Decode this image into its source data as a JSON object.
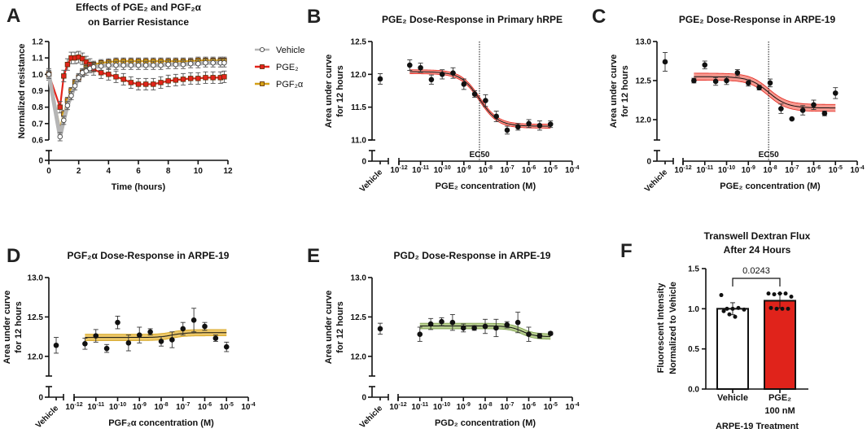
{
  "chart_data": [
    {
      "panel": "A",
      "type": "line",
      "title_lines": [
        "Effects of PGE₂ and PGF₂α",
        "on Barrier Resistance"
      ],
      "xlabel": "Time (hours)",
      "ylabel": "Normalized resistance",
      "xlim": [
        0,
        12
      ],
      "xticks": [
        0,
        2,
        4,
        6,
        8,
        10,
        12
      ],
      "xtick_labels": [
        "0",
        "2",
        "4",
        "6",
        "8",
        "10",
        "12"
      ],
      "ylim": [
        0.6,
        1.2
      ],
      "yticks": [
        0.6,
        0.7,
        0.8,
        0.9,
        1.0,
        1.1,
        1.2
      ],
      "ytick_labels": [
        "0.6",
        "0.7",
        "0.8",
        "0.9",
        "1.0",
        "1.1",
        "1.2"
      ],
      "y_break_label": "0",
      "legend": "right",
      "x": [
        0,
        0.75,
        1,
        1.25,
        1.5,
        1.75,
        2,
        2.25,
        2.5,
        2.75,
        3,
        3.5,
        4,
        4.5,
        5,
        5.5,
        6,
        6.5,
        7,
        7.5,
        8,
        8.5,
        9,
        9.5,
        10,
        10.5,
        11,
        11.5,
        11.75
      ],
      "series": [
        {
          "name": "PGF₂α",
          "color": "#d4a017",
          "marker": "square",
          "error": 0.02,
          "values": [
            1.0,
            0.67,
            0.76,
            0.84,
            0.9,
            0.95,
            0.98,
            1.01,
            1.04,
            1.05,
            1.06,
            1.07,
            1.075,
            1.08,
            1.08,
            1.08,
            1.08,
            1.08,
            1.08,
            1.08,
            1.08,
            1.08,
            1.08,
            1.08,
            1.085,
            1.085,
            1.085,
            1.085,
            1.085
          ]
        },
        {
          "name": "PGE₂",
          "color": "#e3241b",
          "marker": "square",
          "error": 0.035,
          "values": [
            1.0,
            0.8,
            0.99,
            1.06,
            1.1,
            1.1,
            1.105,
            1.095,
            1.075,
            1.06,
            1.03,
            1.01,
            1.0,
            0.985,
            0.97,
            0.95,
            0.94,
            0.94,
            0.94,
            0.95,
            0.96,
            0.965,
            0.97,
            0.975,
            0.975,
            0.98,
            0.98,
            0.98,
            0.985
          ]
        },
        {
          "name": "Vehicle",
          "color": "#b5b5b5",
          "marker": "circle",
          "error": 0.025,
          "values": [
            1.0,
            0.62,
            0.72,
            0.81,
            0.87,
            0.93,
            0.98,
            1.01,
            1.02,
            1.035,
            1.045,
            1.05,
            1.055,
            1.055,
            1.055,
            1.055,
            1.055,
            1.055,
            1.055,
            1.055,
            1.06,
            1.06,
            1.06,
            1.065,
            1.065,
            1.07,
            1.07,
            1.07,
            1.07
          ]
        }
      ]
    },
    {
      "panel": "B",
      "type": "scatter",
      "title": "PGE₂ Dose-Response in Primary hRPE",
      "xlabel": "PGE₂ concentration (M)",
      "ylabel_lines": [
        "Area under curve",
        "for 12 hours"
      ],
      "x_tick_base": "10",
      "x_tick_exponents": [
        "-12",
        "-11",
        "-10",
        "-9",
        "-8",
        "-7",
        "-6",
        "-5",
        "-4"
      ],
      "ylim": [
        11.0,
        12.5
      ],
      "yticks": [
        11.0,
        11.5,
        12.0,
        12.5
      ],
      "ytick_labels": [
        "11.0",
        "11.5",
        "12.0",
        "12.5"
      ],
      "y_break_label": "0",
      "x_log10": [
        -11.5,
        -11,
        -10.5,
        -10,
        -9.5,
        -9,
        -8.5,
        -8,
        -7.5,
        -7,
        -6.5,
        -6,
        -5.5,
        -5
      ],
      "values": [
        12.14,
        12.1,
        11.92,
        12.0,
        12.02,
        11.85,
        11.7,
        11.6,
        11.36,
        11.15,
        11.2,
        11.25,
        11.22,
        11.24
      ],
      "errors": [
        0.08,
        0.07,
        0.07,
        0.07,
        0.08,
        0.08,
        0.05,
        0.09,
        0.08,
        0.06,
        0.05,
        0.06,
        0.07,
        0.05
      ],
      "vehicle": {
        "label": "Vehicle",
        "value": 11.93,
        "error": 0.08
      },
      "fit": {
        "top": 12.04,
        "bottom": 11.21,
        "logEC50": -8.28,
        "hill": 1.0,
        "ci": 0.03
      },
      "ec50_label": "EC50",
      "colors": {
        "band": "#f4877c",
        "band_edge": "#e3241b",
        "line": "#111111"
      }
    },
    {
      "panel": "C",
      "type": "scatter",
      "title": "PGE₂ Dose-Response in ARPE-19",
      "xlabel": "PGE₂ concentration (M)",
      "ylabel_lines": [
        "Area under curve",
        "for 12 hours"
      ],
      "x_tick_base": "10",
      "x_tick_exponents": [
        "-12",
        "-11",
        "-10",
        "-9",
        "-8",
        "-7",
        "-6",
        "-5",
        "-4"
      ],
      "ylim": [
        11.74,
        13.0
      ],
      "yticks": [
        12.0,
        12.5,
        13.0
      ],
      "ytick_labels": [
        "12.0",
        "12.5",
        "13.0"
      ],
      "y_break_label": "0",
      "x_log10": [
        -11.5,
        -11,
        -10.5,
        -10,
        -9.5,
        -9,
        -8.5,
        -8,
        -7.5,
        -7,
        -6.5,
        -6,
        -5.5,
        -5
      ],
      "values": [
        12.5,
        12.7,
        12.49,
        12.5,
        12.6,
        12.47,
        12.41,
        12.47,
        12.14,
        12.01,
        12.12,
        12.19,
        12.08,
        12.34
      ],
      "errors": [
        0.03,
        0.05,
        0.05,
        0.05,
        0.04,
        0.04,
        0.03,
        0.05,
        0.06,
        0.0,
        0.06,
        0.06,
        0.03,
        0.07
      ],
      "vehicle": {
        "label": "Vehicle",
        "value": 12.74,
        "error": 0.12
      },
      "fit": {
        "top": 12.55,
        "bottom": 12.15,
        "logEC50": -8.07,
        "hill": 1.0,
        "ci": 0.045
      },
      "ec50_label": "EC50",
      "colors": {
        "band": "#f4877c",
        "band_edge": "#e3241b",
        "line": "#111111"
      }
    },
    {
      "panel": "D",
      "type": "scatter",
      "title": "PGF₂α Dose-Response in ARPE-19",
      "xlabel": "PGF₂α concentration (M)",
      "ylabel_lines": [
        "Area under curve",
        "for 12 hours"
      ],
      "x_tick_base": "10",
      "x_tick_exponents": [
        "-12",
        "-11",
        "-10",
        "-9",
        "-8",
        "-7",
        "-6",
        "-5",
        "-4"
      ],
      "ylim": [
        11.75,
        13.0
      ],
      "yticks": [
        12.0,
        12.5,
        13.0
      ],
      "ytick_labels": [
        "12.0",
        "12.5",
        "13.0"
      ],
      "y_break_label": "0",
      "x_log10": [
        -11.5,
        -11,
        -10.5,
        -10,
        -9.5,
        -9,
        -8.5,
        -8,
        -7.5,
        -7,
        -6.5,
        -6,
        -5.5,
        -5
      ],
      "values": [
        12.16,
        12.26,
        12.1,
        12.43,
        12.17,
        12.27,
        12.31,
        12.19,
        12.21,
        12.35,
        12.46,
        12.38,
        12.23,
        12.12
      ],
      "errors": [
        0.07,
        0.08,
        0.05,
        0.08,
        0.1,
        0.1,
        0.04,
        0.06,
        0.1,
        0.08,
        0.15,
        0.05,
        0.04,
        0.06
      ],
      "vehicle": {
        "label": "Vehicle",
        "value": 12.14,
        "error": 0.1
      },
      "fit": {
        "top": 12.24,
        "bottom": 12.3,
        "logEC50": -7.5,
        "hill": 1.5,
        "ci": 0.04
      },
      "colors": {
        "band": "#e9bd4c",
        "band_edge": "#d4a017",
        "line": "#111111"
      }
    },
    {
      "panel": "E",
      "type": "scatter",
      "title": "PGD₂ Dose-Response in ARPE-19",
      "xlabel": "PGD₂ concentration (M)",
      "ylabel_lines": [
        "Area under curve",
        "for 12 hours"
      ],
      "x_tick_base": "10",
      "x_tick_exponents": [
        "-12",
        "-11",
        "-10",
        "-9",
        "-8",
        "-7",
        "-6",
        "-5",
        "-4"
      ],
      "ylim": [
        11.75,
        13.0
      ],
      "yticks": [
        12.0,
        12.5,
        13.0
      ],
      "ytick_labels": [
        "12.0",
        "12.5",
        "13.0"
      ],
      "y_break_label": "0",
      "x_log10": [
        -11,
        -10.5,
        -10,
        -9.5,
        -9,
        -8.5,
        -8,
        -7.5,
        -7,
        -6.5,
        -6,
        -5.5,
        -5
      ],
      "values": [
        12.28,
        12.41,
        12.44,
        12.43,
        12.36,
        12.36,
        12.38,
        12.36,
        12.4,
        12.43,
        12.28,
        12.26,
        12.29
      ],
      "errors": [
        0.09,
        0.07,
        0.05,
        0.1,
        0.05,
        0.03,
        0.09,
        0.11,
        0.04,
        0.13,
        0.09,
        0.03,
        0.02
      ],
      "vehicle": {
        "label": "Vehicle",
        "value": 12.35,
        "error": 0.07
      },
      "fit": {
        "top": 12.385,
        "bottom": 12.25,
        "logEC50": -6.3,
        "hill": 1.5,
        "ci": 0.035
      },
      "colors": {
        "band": "#a9c47a",
        "band_edge": "#7a9c48",
        "line": "#111111"
      }
    },
    {
      "panel": "F",
      "type": "bar",
      "title_lines": [
        "Transwell Dextran Flux",
        "After 24 Hours"
      ],
      "categories": [
        "Vehicle",
        "PGE₂"
      ],
      "category_sublabels": [
        "",
        "100 nM"
      ],
      "xlabel": "ARPE-19 Treatment",
      "ylabel_lines": [
        "Fluorescent Intensity",
        "Normalized to Vehicle"
      ],
      "ylim": [
        0,
        1.5
      ],
      "yticks": [
        0,
        0.5,
        1.0,
        1.5
      ],
      "ytick_labels": [
        "0.0",
        "0.5",
        "1.0",
        "1.5"
      ],
      "values": [
        1.0,
        1.1
      ],
      "sd": [
        0.075,
        0.09
      ],
      "points": [
        [
          1.17,
          1.0,
          1.0,
          1.01,
          0.99,
          0.97,
          0.93,
          0.9
        ],
        [
          1.19,
          1.18,
          1.19,
          1.19,
          1.15,
          1.01,
          1.0,
          1.0,
          1.0
        ]
      ],
      "p_value": "0.0243",
      "colors": [
        "#ffffff",
        "#e0231b"
      ]
    }
  ]
}
